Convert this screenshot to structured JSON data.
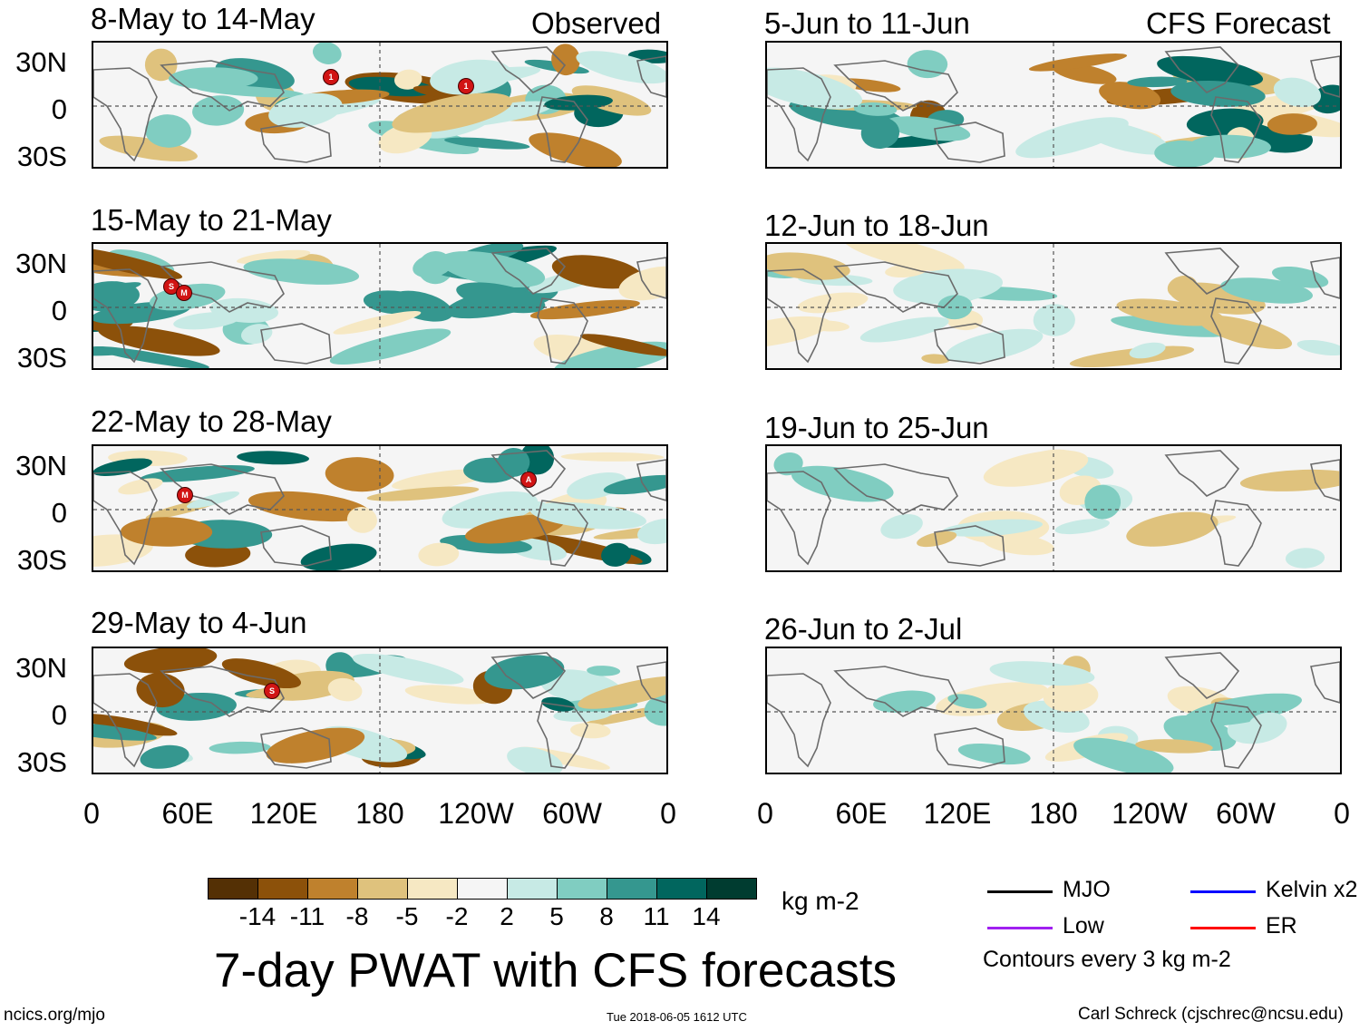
{
  "headers": {
    "observed": "Observed",
    "forecast": "CFS Forecast"
  },
  "observed_panels": [
    {
      "title": "8-May to 14-May",
      "storms": [
        "1",
        "1"
      ]
    },
    {
      "title": "15-May to 21-May",
      "storms": [
        "S",
        "M"
      ]
    },
    {
      "title": "22-May to 28-May",
      "storms": [
        "M",
        "A"
      ]
    },
    {
      "title": "29-May to 4-Jun",
      "storms": [
        "S"
      ]
    }
  ],
  "forecast_panels": [
    {
      "title": "5-Jun to 11-Jun"
    },
    {
      "title": "12-Jun to 18-Jun"
    },
    {
      "title": "19-Jun to 25-Jun"
    },
    {
      "title": "26-Jun to 2-Jul"
    }
  ],
  "y_ticks": [
    "30N",
    "0",
    "30S"
  ],
  "x_ticks": [
    "0",
    "60E",
    "120E",
    "180",
    "120W",
    "60W",
    "0"
  ],
  "colorbar": {
    "colors": [
      "#543005",
      "#8c510a",
      "#bf812d",
      "#dfc27d",
      "#f6e8c3",
      "#f5f5f5",
      "#c7eae5",
      "#80cdc1",
      "#35978f",
      "#01665e",
      "#003c30"
    ],
    "labels": [
      "-14",
      "-11",
      "-8",
      "-5",
      "-2",
      "2",
      "5",
      "8",
      "11",
      "14"
    ],
    "units": "kg m-2"
  },
  "legend": {
    "items": [
      {
        "label": "MJO",
        "color": "#000000"
      },
      {
        "label": "Kelvin x2",
        "color": "#0000ff"
      },
      {
        "label": "Low",
        "color": "#a020f0"
      },
      {
        "label": "ER",
        "color": "#ff0000"
      }
    ],
    "contours_note": "Contours every 3 kg m-2"
  },
  "main_title": "7-day PWAT with CFS forecasts",
  "footer": {
    "left": "ncics.org/mjo",
    "center": "Tue 2018-06-05 1612 UTC",
    "right": "Carl Schreck (cjschrec@ncsu.edu)"
  }
}
